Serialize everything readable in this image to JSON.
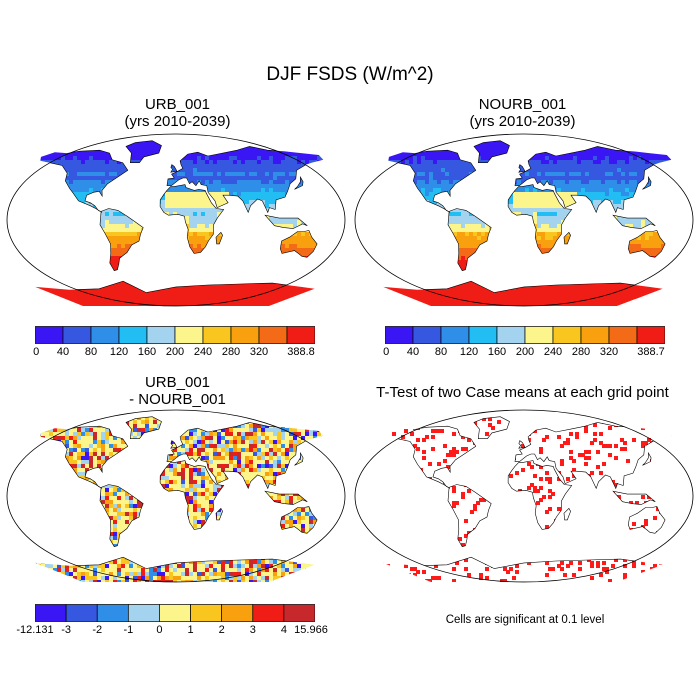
{
  "title": "DJF FSDS (W/m^2)",
  "colors": {
    "abs_scale": [
      "#3a16f5",
      "#3657e0",
      "#2f8ee8",
      "#22bdf2",
      "#a3d3ef",
      "#fbf58c",
      "#f8c61f",
      "#f8a00e",
      "#f36b16",
      "#ef1d16",
      "#c7282b"
    ],
    "diff_scale": [
      "#3a16f5",
      "#3657e0",
      "#2f8ee8",
      "#a3d3ef",
      "#fbf58c",
      "#f8c61f",
      "#f8a00e",
      "#ef1d16",
      "#c7282b"
    ],
    "ocean": "#ffffff",
    "significance": "#ff1a1a"
  },
  "panels": [
    {
      "id": "urb",
      "title_line1": "URB_001",
      "title_line2": "(yrs 2010-2039)",
      "colorbar": {
        "labels": [
          "0",
          "40",
          "80",
          "120",
          "160",
          "200",
          "240",
          "280",
          "320"
        ],
        "end_label": "388.8"
      }
    },
    {
      "id": "nourb",
      "title_line1": "NOURB_001",
      "title_line2": "(yrs 2010-2039)",
      "colorbar": {
        "labels": [
          "0",
          "40",
          "80",
          "120",
          "160",
          "200",
          "240",
          "280",
          "320"
        ],
        "end_label": "388.7"
      }
    },
    {
      "id": "diff",
      "title_line1": "URB_001",
      "title_line2": "- NOURB_001",
      "colorbar": {
        "labels": [
          "-12.131",
          "-3",
          "-2",
          "-1",
          "0",
          "1",
          "2",
          "3",
          "4",
          "15.966"
        ]
      }
    },
    {
      "id": "ttest",
      "title_line1": "T-Test of two Case means at each grid point",
      "note": "Cells are significant at 0.1 level"
    }
  ]
}
